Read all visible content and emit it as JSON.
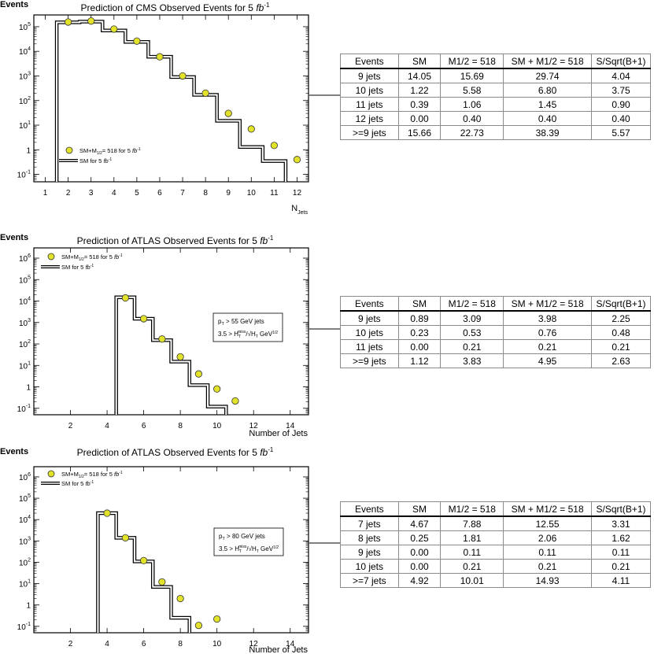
{
  "chart_data": [
    {
      "type": "histogram",
      "title": "Prediction of CMS Observed Events for 5",
      "title_unit": "fb",
      "title_sup": "-1",
      "ylabel": "Events",
      "xlabel": "N",
      "xlabel_sub": "Jets",
      "yscale": "log",
      "xlim": [
        0.5,
        12.5
      ],
      "ylim": [
        0.05,
        300000
      ],
      "xticks": [
        "1",
        "2",
        "3",
        "4",
        "5",
        "6",
        "7",
        "8",
        "9",
        "10",
        "11",
        "12"
      ],
      "yticks": [
        {
          "base": "10",
          "exp": "5"
        },
        {
          "base": "10",
          "exp": "4"
        },
        {
          "base": "10",
          "exp": "3"
        },
        {
          "base": "10",
          "exp": "2"
        },
        {
          "base": "10",
          "exp": "1"
        },
        {
          "base": "1",
          "exp": ""
        },
        {
          "base": "10",
          "exp": "-1"
        }
      ],
      "sm_hist": {
        "name": "SM for 5",
        "name_unit": "fb",
        "name_sup": "-1",
        "bins": [
          2,
          3,
          4,
          5,
          6,
          7,
          8,
          9,
          10,
          11
        ],
        "values": [
          150000,
          160000,
          70000,
          24000,
          6000,
          900,
          170,
          15,
          1.3,
          0.35
        ]
      },
      "signal": {
        "name_pre": "SM+M",
        "name_sub": "1/2",
        "name_post": "= 518 for 5",
        "name_unit": "fb",
        "name_sup": "-1",
        "x": [
          2,
          3,
          4,
          5,
          6,
          7,
          8,
          9,
          10,
          11,
          12
        ],
        "y": [
          155000,
          170000,
          80000,
          26000,
          6000,
          1000,
          200,
          30,
          7,
          1.5,
          0.4
        ]
      },
      "table": {
        "headers": [
          "Events",
          "SM",
          "M1/2 = 518",
          "SM + M1/2 = 518",
          "S/Sqrt(B+1)"
        ],
        "rows": [
          [
            "9 jets",
            "14.05",
            "15.69",
            "29.74",
            "4.04"
          ],
          [
            "10 jets",
            "1.22",
            "5.58",
            "6.80",
            "3.75"
          ],
          [
            "11 jets",
            "0.39",
            "1.06",
            "1.45",
            "0.90"
          ],
          [
            "12 jets",
            "0.00",
            "0.40",
            "0.40",
            "0.40"
          ],
          [
            ">=9 jets",
            "15.66",
            "22.73",
            "38.39",
            "5.57"
          ]
        ]
      }
    },
    {
      "type": "histogram",
      "title": "Prediction of ATLAS Observed Events for 5",
      "title_unit": "fb",
      "title_sup": "-1",
      "ylabel": "Events",
      "xlabel": "Number of Jets",
      "yscale": "log",
      "xlim": [
        0,
        15
      ],
      "ylim": [
        0.05,
        3000000
      ],
      "xticks": [
        "2",
        "4",
        "6",
        "8",
        "10",
        "12",
        "14"
      ],
      "yticks": [
        {
          "base": "10",
          "exp": "6"
        },
        {
          "base": "10",
          "exp": "5"
        },
        {
          "base": "10",
          "exp": "4"
        },
        {
          "base": "10",
          "exp": "3"
        },
        {
          "base": "10",
          "exp": "2"
        },
        {
          "base": "10",
          "exp": "1"
        },
        {
          "base": "1",
          "exp": ""
        },
        {
          "base": "10",
          "exp": "-1"
        }
      ],
      "sm_hist": {
        "name": "SM for 5",
        "name_unit": "fb",
        "name_sup": "-1",
        "bins": [
          5,
          6,
          7,
          8,
          9,
          10
        ],
        "values": [
          15000,
          1500,
          150,
          15,
          1.2,
          0.12
        ]
      },
      "signal": {
        "name_pre": "SM+M",
        "name_sub": "1/2",
        "name_post": "= 518 for 5",
        "name_unit": "fb",
        "name_sup": "-1",
        "x": [
          5,
          6,
          7,
          8,
          9,
          10,
          11
        ],
        "y": [
          14000,
          1500,
          170,
          25,
          4,
          0.8,
          0.22
        ]
      },
      "cuts": {
        "line1_pre": "p",
        "line1_sub": "T",
        "line1_post": " > 55 GeV jets",
        "line2_pre": "3.5 > H",
        "line2_sub": "T",
        "line2_sup": "miss",
        "line2_mid": "/√H",
        "line2_sub2": "T",
        "line2_unit": " GeV",
        "line2_sup2": "1/2"
      },
      "table": {
        "headers": [
          "Events",
          "SM",
          "M1/2 = 518",
          "SM + M1/2 = 518",
          "S/Sqrt(B+1)"
        ],
        "rows": [
          [
            "9 jets",
            "0.89",
            "3.09",
            "3.98",
            "2.25"
          ],
          [
            "10 jets",
            "0.23",
            "0.53",
            "0.76",
            "0.48"
          ],
          [
            "11 jets",
            "0.00",
            "0.21",
            "0.21",
            "0.21"
          ],
          [
            ">=9 jets",
            "1.12",
            "3.83",
            "4.95",
            "2.63"
          ]
        ]
      }
    },
    {
      "type": "histogram",
      "title": "Prediction of ATLAS Observed Events for 5",
      "title_unit": "fb",
      "title_sup": "-1",
      "ylabel": "Events",
      "xlabel": "Number of Jets",
      "yscale": "log",
      "xlim": [
        0,
        15
      ],
      "ylim": [
        0.05,
        3000000
      ],
      "xticks": [
        "2",
        "4",
        "6",
        "8",
        "10",
        "12",
        "14"
      ],
      "yticks": [
        {
          "base": "10",
          "exp": "6"
        },
        {
          "base": "10",
          "exp": "5"
        },
        {
          "base": "10",
          "exp": "4"
        },
        {
          "base": "10",
          "exp": "3"
        },
        {
          "base": "10",
          "exp": "2"
        },
        {
          "base": "10",
          "exp": "1"
        },
        {
          "base": "1",
          "exp": ""
        },
        {
          "base": "10",
          "exp": "-1"
        }
      ],
      "sm_hist": {
        "name": "SM for 5",
        "name_unit": "fb",
        "name_sup": "-1",
        "bins": [
          4,
          5,
          6,
          7,
          8
        ],
        "values": [
          20000,
          1400,
          110,
          7,
          0.25
        ]
      },
      "signal": {
        "name_pre": "SM+M",
        "name_sub": "1/2",
        "name_post": "= 518 for 5",
        "name_unit": "fb",
        "name_sup": "-1",
        "x": [
          4,
          5,
          6,
          7,
          8,
          9,
          10
        ],
        "y": [
          20000,
          1400,
          120,
          12,
          2,
          0.11,
          0.22
        ]
      },
      "cuts": {
        "line1_pre": "p",
        "line1_sub": "T",
        "line1_post": " > 80 GeV jets",
        "line2_pre": "3.5 > H",
        "line2_sub": "T",
        "line2_sup": "miss",
        "line2_mid": "/√H",
        "line2_sub2": "T",
        "line2_unit": " GeV",
        "line2_sup2": "1/2"
      },
      "table": {
        "headers": [
          "Events",
          "SM",
          "M1/2 = 518",
          "SM + M1/2 = 518",
          "S/Sqrt(B+1)"
        ],
        "rows": [
          [
            "7 jets",
            "4.67",
            "7.88",
            "12.55",
            "3.31"
          ],
          [
            "8 jets",
            "0.25",
            "1.81",
            "2.06",
            "1.62"
          ],
          [
            "9 jets",
            "0.00",
            "0.11",
            "0.11",
            "0.11"
          ],
          [
            "10 jets",
            "0.00",
            "0.21",
            "0.21",
            "0.21"
          ],
          [
            ">=7 jets",
            "4.92",
            "10.01",
            "14.93",
            "4.11"
          ]
        ]
      }
    }
  ],
  "style": {
    "marker_fill": "#e3e22a",
    "marker_stroke": "#333333",
    "line_color": "#000000"
  }
}
